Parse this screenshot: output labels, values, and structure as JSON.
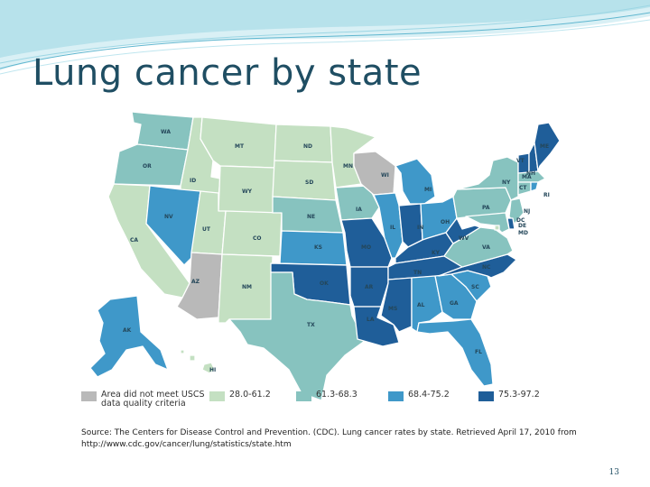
{
  "slide": {
    "title": "Lung cancer by state",
    "source": "Source: The Centers for Disease Control and Prevention. (CDC). Lung cancer rates by state. Retrieved April 17, 2010 from http://www.cdc.gov/cancer/lung/statistics/state.htm",
    "slide_number": "13"
  },
  "colors": {
    "no_data": "#b9b9b9",
    "low": "#c4e0c2",
    "mid_low": "#87c3bf",
    "mid_high": "#3f98c9",
    "high": "#1f5e99",
    "border": "#ffffff",
    "title": "#1f4e63"
  },
  "legend": [
    {
      "label": "Area did not meet USCS data quality criteria",
      "color_key": "no_data"
    },
    {
      "label": "28.0-61.2",
      "color_key": "low"
    },
    {
      "label": "61.3-68.3",
      "color_key": "mid_low"
    },
    {
      "label": "68.4-75.2",
      "color_key": "mid_high"
    },
    {
      "label": "75.3-97.2",
      "color_key": "high"
    }
  ],
  "states": [
    {
      "abbr": "WA",
      "category": "mid_low"
    },
    {
      "abbr": "OR",
      "category": "mid_low"
    },
    {
      "abbr": "CA",
      "category": "low"
    },
    {
      "abbr": "ID",
      "category": "low"
    },
    {
      "abbr": "NV",
      "category": "mid_high"
    },
    {
      "abbr": "MT",
      "category": "low"
    },
    {
      "abbr": "WY",
      "category": "low"
    },
    {
      "abbr": "UT",
      "category": "low"
    },
    {
      "abbr": "AZ",
      "category": "no_data"
    },
    {
      "abbr": "CO",
      "category": "low"
    },
    {
      "abbr": "NM",
      "category": "low"
    },
    {
      "abbr": "ND",
      "category": "low"
    },
    {
      "abbr": "SD",
      "category": "low"
    },
    {
      "abbr": "NE",
      "category": "mid_low"
    },
    {
      "abbr": "KS",
      "category": "mid_high"
    },
    {
      "abbr": "OK",
      "category": "high"
    },
    {
      "abbr": "TX",
      "category": "mid_low"
    },
    {
      "abbr": "MN",
      "category": "low"
    },
    {
      "abbr": "IA",
      "category": "mid_low"
    },
    {
      "abbr": "MO",
      "category": "high"
    },
    {
      "abbr": "AR",
      "category": "high"
    },
    {
      "abbr": "LA",
      "category": "high"
    },
    {
      "abbr": "WI",
      "category": "no_data"
    },
    {
      "abbr": "IL",
      "category": "mid_high"
    },
    {
      "abbr": "MI",
      "category": "mid_high"
    },
    {
      "abbr": "IN",
      "category": "high"
    },
    {
      "abbr": "OH",
      "category": "mid_high"
    },
    {
      "abbr": "KY",
      "category": "high"
    },
    {
      "abbr": "TN",
      "category": "high"
    },
    {
      "abbr": "MS",
      "category": "high"
    },
    {
      "abbr": "AL",
      "category": "mid_high"
    },
    {
      "abbr": "GA",
      "category": "mid_high"
    },
    {
      "abbr": "FL",
      "category": "mid_high"
    },
    {
      "abbr": "SC",
      "category": "mid_high"
    },
    {
      "abbr": "NC",
      "category": "high"
    },
    {
      "abbr": "VA",
      "category": "mid_low"
    },
    {
      "abbr": "WV",
      "category": "high"
    },
    {
      "abbr": "PA",
      "category": "mid_low"
    },
    {
      "abbr": "NY",
      "category": "mid_low"
    },
    {
      "abbr": "VT",
      "category": "high"
    },
    {
      "abbr": "NH",
      "category": "high"
    },
    {
      "abbr": "ME",
      "category": "high"
    },
    {
      "abbr": "MA",
      "category": "mid_low"
    },
    {
      "abbr": "CT",
      "category": "mid_low"
    },
    {
      "abbr": "RI",
      "category": "mid_high"
    },
    {
      "abbr": "NJ",
      "category": "mid_low"
    },
    {
      "abbr": "DE",
      "category": "high"
    },
    {
      "abbr": "MD",
      "category": "mid_low"
    },
    {
      "abbr": "DC",
      "category": "low"
    },
    {
      "abbr": "AK",
      "category": "mid_high"
    },
    {
      "abbr": "HI",
      "category": "low"
    }
  ]
}
